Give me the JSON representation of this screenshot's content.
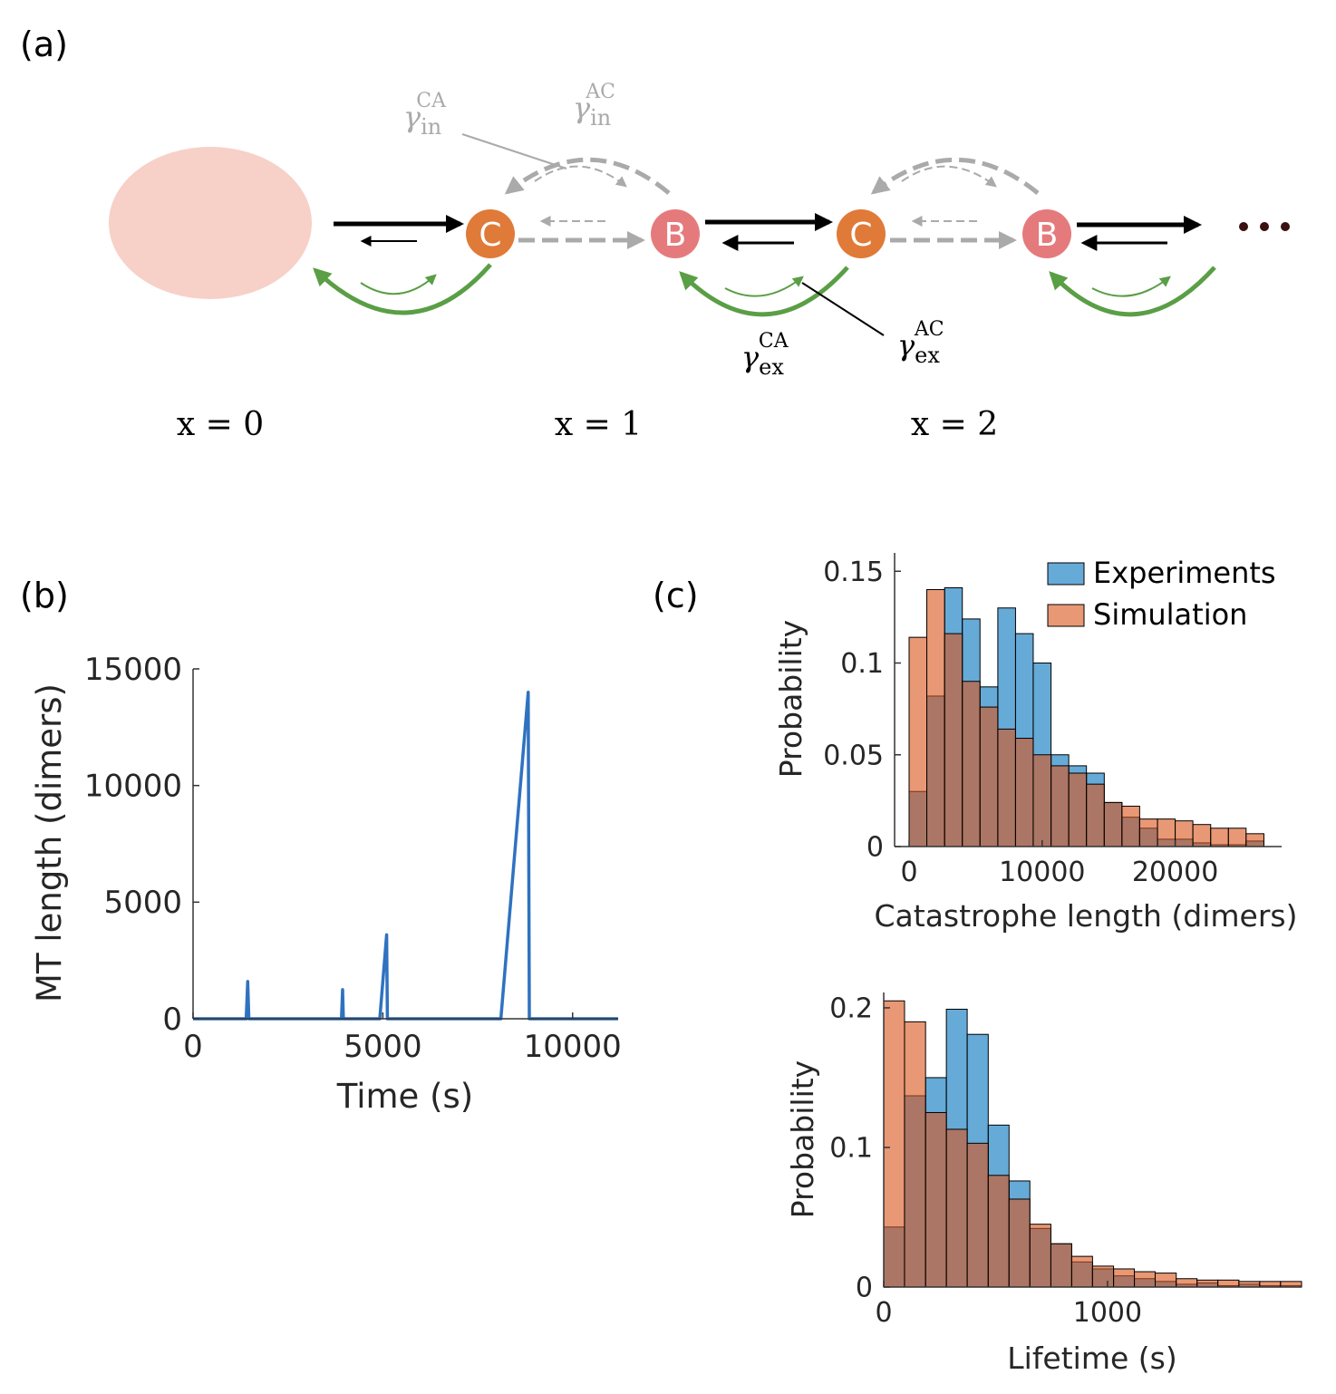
{
  "panel_labels": [
    "(a)",
    "(b)",
    "(c)"
  ],
  "diagram": {
    "nodes": [
      "C",
      "B",
      "C",
      "B"
    ],
    "rates": [
      {
        "symbol": "γ",
        "sub": "in",
        "sup": "CA"
      },
      {
        "symbol": "γ",
        "sub": "in",
        "sup": "AC"
      },
      {
        "symbol": "γ",
        "sub": "ex",
        "sup": "CA"
      },
      {
        "symbol": "γ",
        "sub": "ex",
        "sup": "AC"
      }
    ],
    "positions": [
      "x = 0",
      "x = 1",
      "x = 2"
    ]
  },
  "chart_data": [
    {
      "type": "diagram"
    },
    {
      "type": "line",
      "x": [
        0,
        1400,
        1440,
        1470,
        3910,
        3940,
        3960,
        4920,
        5100,
        5120,
        8110,
        8830,
        8860,
        11200
      ],
      "series": [
        {
          "color": "#2f72c0",
          "values": [
            0,
            0,
            1600,
            0,
            0,
            1250,
            0,
            0,
            3600,
            0,
            0,
            14000,
            0,
            0
          ]
        }
      ],
      "xlim": [
        0,
        11200
      ],
      "ylim": [
        0,
        15000
      ],
      "xticks": [
        0,
        5000,
        10000
      ],
      "yticks": [
        0,
        5000,
        10000,
        15000
      ],
      "xlabel": "Time (s)",
      "ylabel": "MT length (dimers)"
    },
    {
      "type": "histogram",
      "bins": [
        0,
        1330,
        2670,
        4000,
        5330,
        6670,
        8000,
        9330,
        10670,
        12000,
        13330,
        14670,
        16000,
        17330,
        18670,
        20000,
        21330,
        22670,
        24000,
        25330,
        26670
      ],
      "series": [
        {
          "name": "Experiments",
          "color": "#0072bd",
          "values": [
            0.03,
            0.082,
            0.141,
            0.124,
            0.087,
            0.13,
            0.116,
            0.1,
            0.05,
            0.044,
            0.04,
            0.024,
            0.016,
            0.01,
            0.004,
            0.004,
            0.002,
            0.001,
            0.001,
            0.003
          ]
        },
        {
          "name": "Simulation",
          "color": "#d95319",
          "values": [
            0.114,
            0.14,
            0.116,
            0.09,
            0.076,
            0.064,
            0.059,
            0.05,
            0.044,
            0.04,
            0.034,
            0.024,
            0.022,
            0.015,
            0.015,
            0.014,
            0.012,
            0.01,
            0.01,
            0.007
          ]
        }
      ],
      "opacity": 0.6,
      "legend": "upper right",
      "xlim": [
        -1090,
        28000
      ],
      "ylim": [
        0,
        0.16
      ],
      "xticks": [
        0,
        10000,
        20000
      ],
      "yticks": [
        0,
        0.05,
        0.1,
        0.15
      ],
      "xlabel": "Catastrophe length (dimers)",
      "ylabel": "Probability"
    },
    {
      "type": "histogram",
      "bins": [
        0,
        93,
        187,
        280,
        373,
        467,
        560,
        653,
        747,
        840,
        933,
        1027,
        1120,
        1213,
        1307,
        1400,
        1493,
        1587,
        1680,
        1773,
        1867
      ],
      "series": [
        {
          "color": "#0072bd",
          "values": [
            0.043,
            0.137,
            0.15,
            0.199,
            0.181,
            0.116,
            0.076,
            0.042,
            0.031,
            0.018,
            0.013,
            0.008,
            0.006,
            0.004,
            0.002,
            0.003,
            0.001,
            0.002,
            0.001,
            0.001
          ]
        },
        {
          "color": "#d95319",
          "values": [
            0.205,
            0.19,
            0.125,
            0.113,
            0.103,
            0.08,
            0.063,
            0.045,
            0.031,
            0.022,
            0.015,
            0.013,
            0.011,
            0.01,
            0.006,
            0.005,
            0.005,
            0.004,
            0.004,
            0.004
          ]
        }
      ],
      "opacity": 0.6,
      "xlim": [
        0,
        1867
      ],
      "ylim": [
        0,
        0.211
      ],
      "xticks": [
        0,
        1000
      ],
      "yticks": [
        0,
        0.1,
        0.2
      ],
      "xlabel": "Lifetime (s)",
      "ylabel": "Probability"
    }
  ]
}
